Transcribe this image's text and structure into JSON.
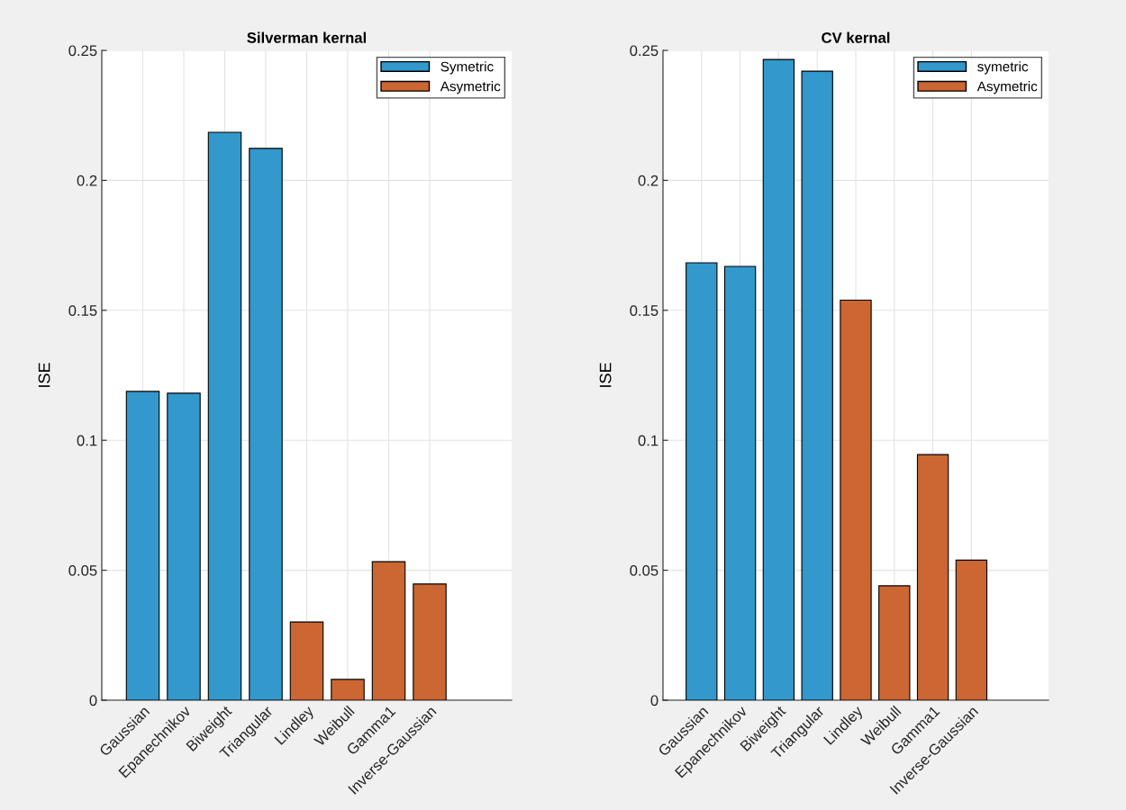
{
  "chart_data": [
    {
      "type": "bar",
      "title": "Silverman kernal",
      "ylabel": "ISE",
      "categories": [
        "Gaussian",
        "Epanechnikov",
        "Biweight",
        "Triangular",
        "Lindley",
        "Weibull",
        "Gamma1",
        "Inverse-Gaussian"
      ],
      "series": [
        {
          "name": "Symetric",
          "color": "#3398cc",
          "values": [
            0.1188,
            0.1181,
            0.2185,
            0.2123,
            null,
            null,
            null,
            null
          ]
        },
        {
          "name": "Asymetric",
          "color": "#cc6633",
          "values": [
            null,
            null,
            null,
            null,
            0.0301,
            0.008,
            0.0533,
            0.0447
          ]
        }
      ],
      "ylim": [
        0,
        0.25
      ],
      "yticks": [
        0,
        0.05,
        0.1,
        0.15,
        0.2,
        0.25
      ],
      "grid": true,
      "legend": "top right"
    },
    {
      "type": "bar",
      "title": "CV kernal",
      "ylabel": "ISE",
      "categories": [
        "Gaussian",
        "Epanechnikov",
        "Biweight",
        "Triangular",
        "Lindley",
        "Weibull",
        "Gamma1",
        "Inverse-Gaussian"
      ],
      "series": [
        {
          "name": "symetric",
          "color": "#3398cc",
          "values": [
            0.1683,
            0.1669,
            0.2465,
            0.242,
            null,
            null,
            null,
            null
          ]
        },
        {
          "name": "Asymetric",
          "color": "#cc6633",
          "values": [
            null,
            null,
            null,
            null,
            0.1539,
            0.044,
            0.0945,
            0.0539
          ]
        }
      ],
      "ylim": [
        0,
        0.25
      ],
      "yticks": [
        0,
        0.05,
        0.1,
        0.15,
        0.2,
        0.25
      ],
      "grid": true,
      "legend": "top right"
    }
  ]
}
